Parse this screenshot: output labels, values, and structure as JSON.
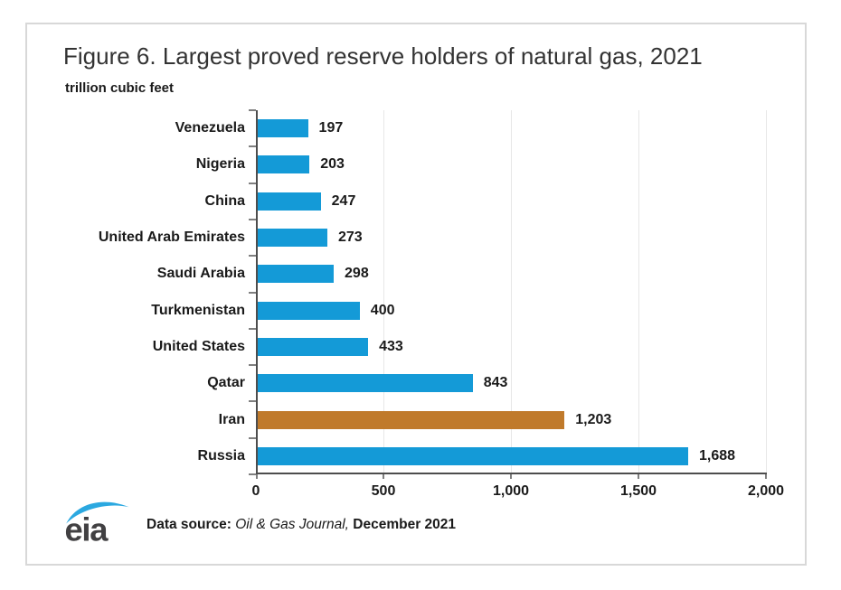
{
  "figure": {
    "title": "Figure 6. Largest proved reserve holders of natural gas, 2021",
    "units_label": "trillion cubic feet",
    "footer": {
      "logo_text": "eia",
      "source_prefix": "Data source: ",
      "source_journal": "Oil & Gas Journal,",
      "source_suffix": " December 2021"
    }
  },
  "colors": {
    "bar_default": "#149AD7",
    "bar_highlight": "#C07A2B",
    "axis_line": "#4d4d4d",
    "tick": "#7f7f7f",
    "gridline": "#e7e7e7",
    "text": "#1a1a1a",
    "frame_border": "#d8d8d8",
    "logo_swoosh": "#2BA8E0",
    "logo_text": "#414042"
  },
  "chart_data": {
    "type": "bar",
    "orientation": "horizontal",
    "title": "Figure 6. Largest proved reserve holders of natural gas, 2021",
    "ylabel": "trillion cubic feet",
    "xlabel": "",
    "categories_top_to_bottom": [
      "Venezuela",
      "Nigeria",
      "China",
      "United Arab Emirates",
      "Saudi Arabia",
      "Turkmenistan",
      "United States",
      "Qatar",
      "Iran",
      "Russia"
    ],
    "values": [
      197,
      203,
      247,
      273,
      298,
      400,
      433,
      843,
      1203,
      1688
    ],
    "value_labels": [
      "197",
      "203",
      "247",
      "273",
      "298",
      "400",
      "433",
      "843",
      "1,203",
      "1,688"
    ],
    "highlight_category": "Iran",
    "xlim": [
      0,
      2000
    ],
    "x_tick_values": [
      0,
      500,
      1000,
      1500,
      2000
    ],
    "x_tick_labels": [
      "0",
      "500",
      "1,000",
      "1,500",
      "2,000"
    ],
    "grid": true,
    "legend": false
  }
}
